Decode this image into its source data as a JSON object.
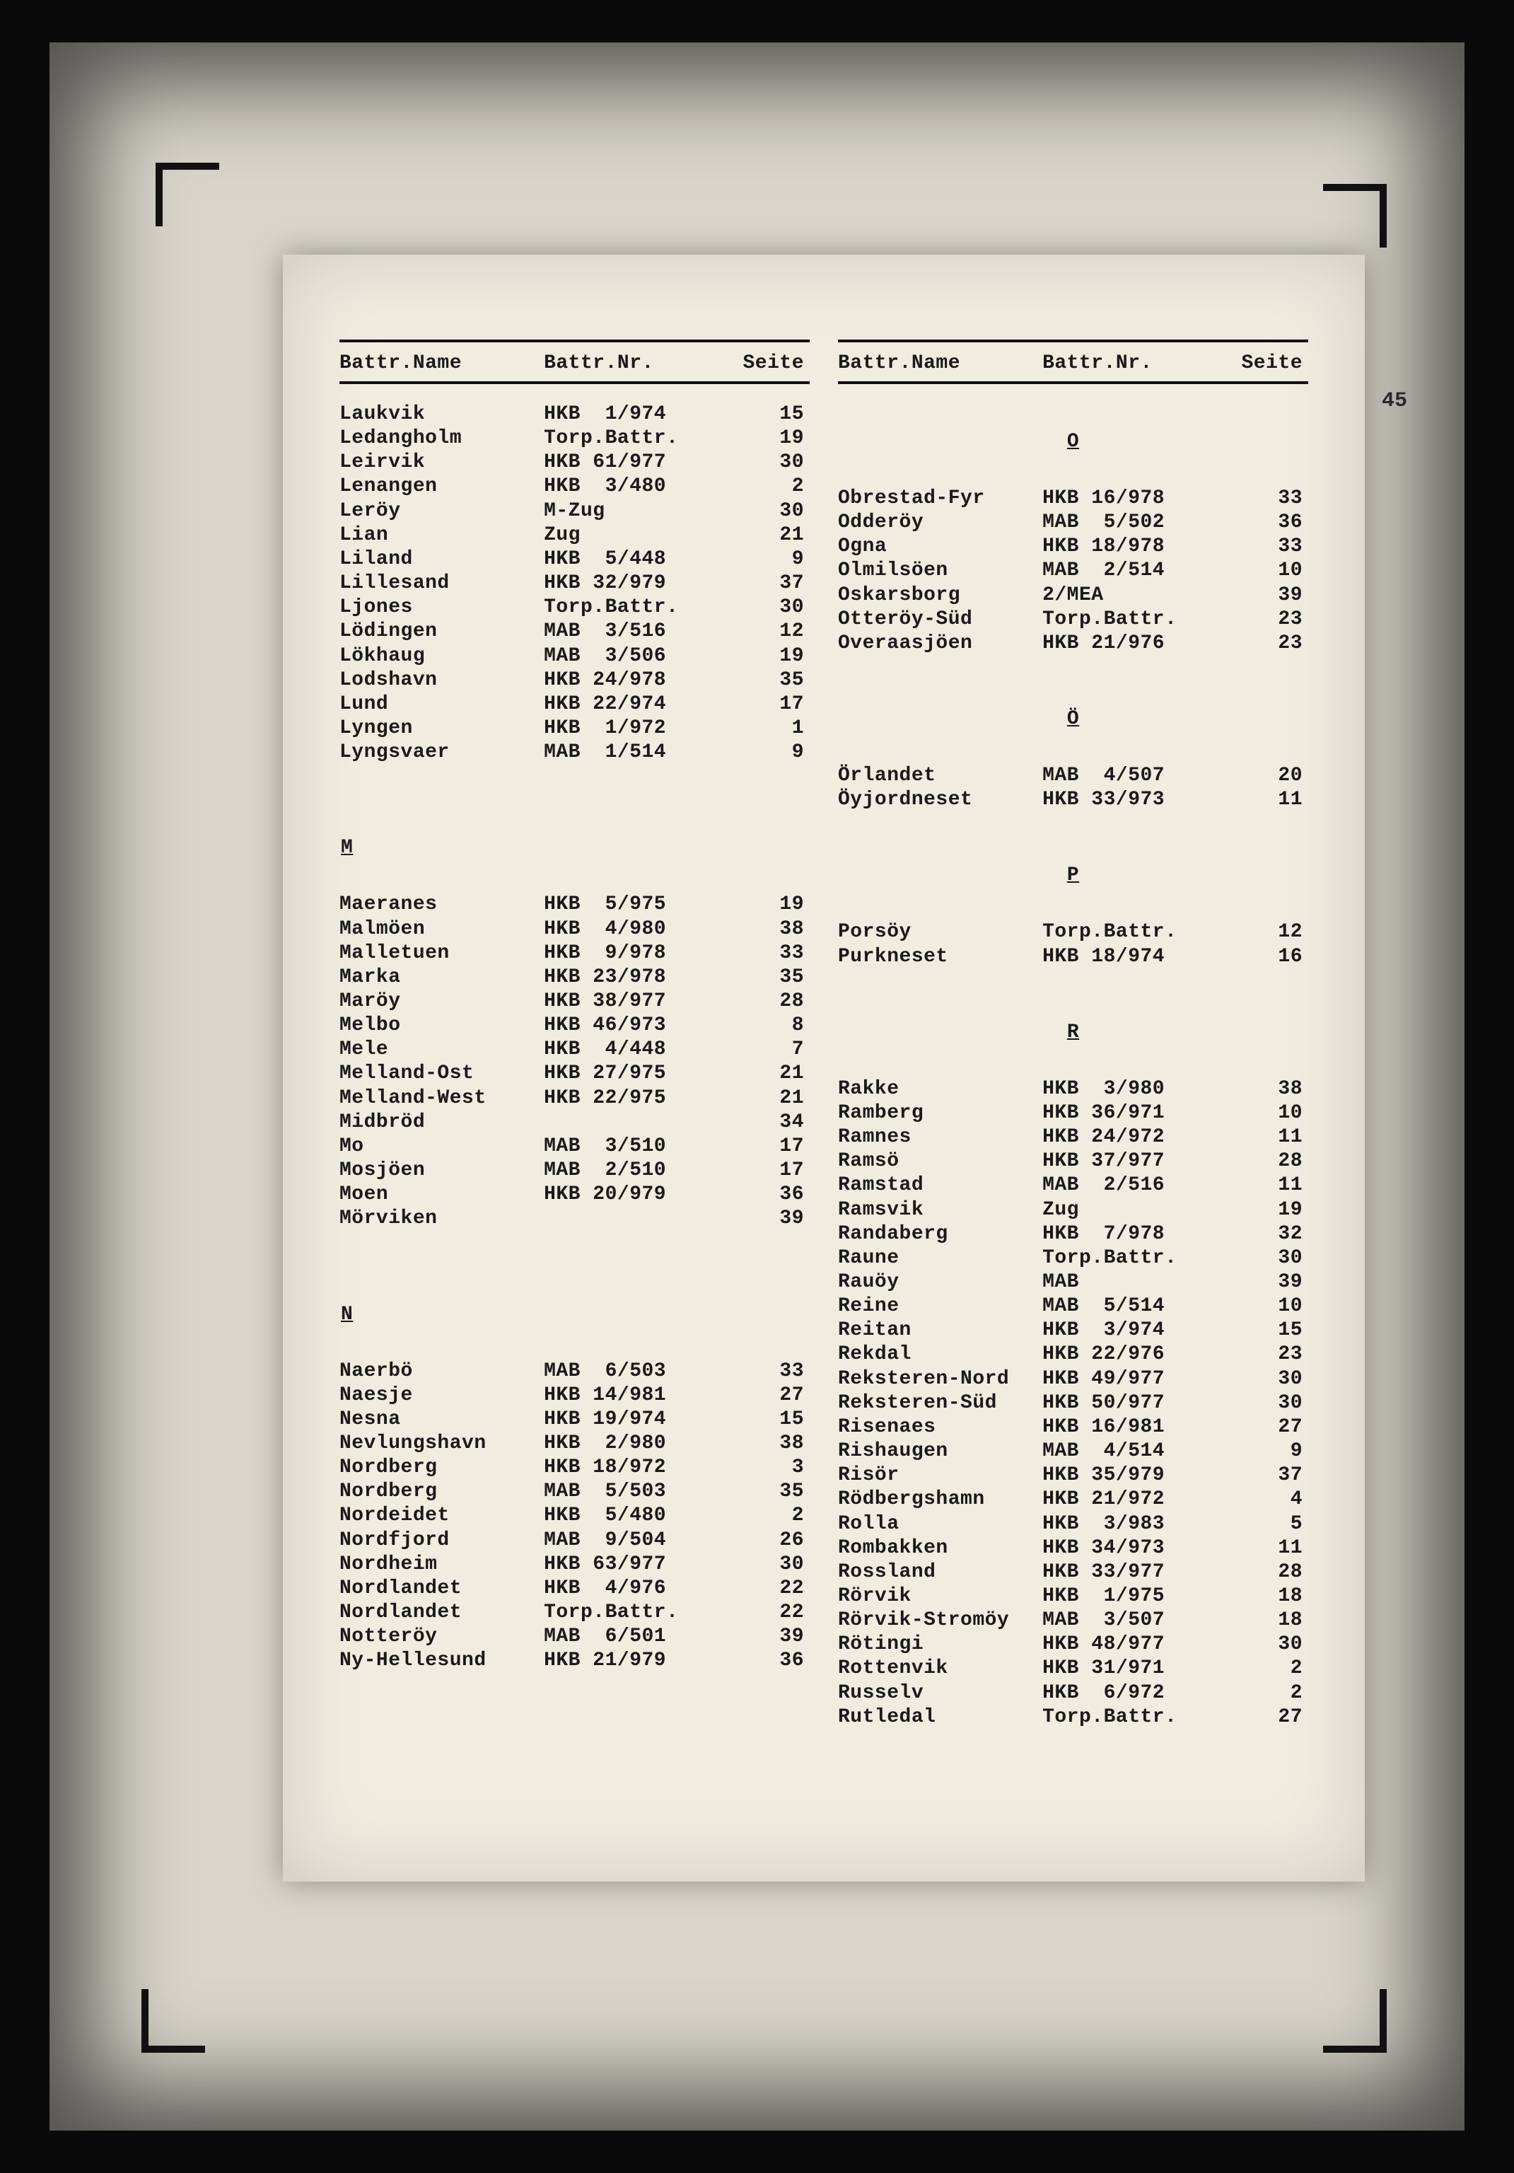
{
  "margin_number": "45",
  "headers": {
    "name": "Battr.Name",
    "nr": "Battr.Nr.",
    "seite": "Seite"
  },
  "left": {
    "groups": [
      {
        "heading": null,
        "rows": [
          {
            "name": "Laukvik",
            "nr": "HKB  1/974",
            "seite": "15"
          },
          {
            "name": "Ledangholm",
            "nr": "Torp.Battr.",
            "seite": "19"
          },
          {
            "name": "Leirvik",
            "nr": "HKB 61/977",
            "seite": "30"
          },
          {
            "name": "Lenangen",
            "nr": "HKB  3/480",
            "seite": "2"
          },
          {
            "name": "Leröy",
            "nr": "M-Zug",
            "seite": "30"
          },
          {
            "name": "Lian",
            "nr": "Zug",
            "seite": "21"
          },
          {
            "name": "Liland",
            "nr": "HKB  5/448",
            "seite": "9"
          },
          {
            "name": "Lillesand",
            "nr": "HKB 32/979",
            "seite": "37"
          },
          {
            "name": "Ljones",
            "nr": "Torp.Battr.",
            "seite": "30"
          },
          {
            "name": "Lödingen",
            "nr": "MAB  3/516",
            "seite": "12"
          },
          {
            "name": "Lökhaug",
            "nr": "MAB  3/506",
            "seite": "19"
          },
          {
            "name": "Lodshavn",
            "nr": "HKB 24/978",
            "seite": "35"
          },
          {
            "name": "Lund",
            "nr": "HKB 22/974",
            "seite": "17"
          },
          {
            "name": "Lyngen",
            "nr": "HKB  1/972",
            "seite": "1"
          },
          {
            "name": "Lyngsvaer",
            "nr": "MAB  1/514",
            "seite": "9"
          }
        ]
      },
      {
        "heading": "M",
        "rows": [
          {
            "name": "Maeranes",
            "nr": "HKB  5/975",
            "seite": "19"
          },
          {
            "name": "Malmöen",
            "nr": "HKB  4/980",
            "seite": "38"
          },
          {
            "name": "Malletuen",
            "nr": "HKB  9/978",
            "seite": "33"
          },
          {
            "name": "Marka",
            "nr": "HKB 23/978",
            "seite": "35"
          },
          {
            "name": "Maröy",
            "nr": "HKB 38/977",
            "seite": "28"
          },
          {
            "name": "Melbo",
            "nr": "HKB 46/973",
            "seite": "8"
          },
          {
            "name": "Mele",
            "nr": "HKB  4/448",
            "seite": "7"
          },
          {
            "name": "Melland-Ost",
            "nr": "HKB 27/975",
            "seite": "21"
          },
          {
            "name": "Melland-West",
            "nr": "HKB 22/975",
            "seite": "21"
          },
          {
            "name": "Midbröd",
            "nr": "",
            "seite": "34"
          },
          {
            "name": "Mo",
            "nr": "MAB  3/510",
            "seite": "17"
          },
          {
            "name": "Mosjöen",
            "nr": "MAB  2/510",
            "seite": "17"
          },
          {
            "name": "Moen",
            "nr": "HKB 20/979",
            "seite": "36"
          },
          {
            "name": "Mörviken",
            "nr": "",
            "seite": "39"
          }
        ]
      },
      {
        "heading": "N",
        "rows": [
          {
            "name": "Naerbö",
            "nr": "MAB  6/503",
            "seite": "33"
          },
          {
            "name": "Naesje",
            "nr": "HKB 14/981",
            "seite": "27"
          },
          {
            "name": "Nesna",
            "nr": "HKB 19/974",
            "seite": "15"
          },
          {
            "name": "Nevlungshavn",
            "nr": "HKB  2/980",
            "seite": "38"
          },
          {
            "name": "Nordberg",
            "nr": "HKB 18/972",
            "seite": "3"
          },
          {
            "name": "Nordberg",
            "nr": "MAB  5/503",
            "seite": "35"
          },
          {
            "name": "Nordeidet",
            "nr": "HKB  5/480",
            "seite": "2"
          },
          {
            "name": "Nordfjord",
            "nr": "MAB  9/504",
            "seite": "26"
          },
          {
            "name": "Nordheim",
            "nr": "HKB 63/977",
            "seite": "30"
          },
          {
            "name": "Nordlandet",
            "nr": "HKB  4/976",
            "seite": "22"
          },
          {
            "name": "Nordlandet",
            "nr": "Torp.Battr.",
            "seite": "22"
          },
          {
            "name": "Notteröy",
            "nr": "MAB  6/501",
            "seite": "39"
          },
          {
            "name": "Ny-Hellesund",
            "nr": "HKB 21/979",
            "seite": "36"
          }
        ]
      }
    ]
  },
  "right": {
    "groups": [
      {
        "heading": "O",
        "center": true,
        "rows": [
          {
            "name": "Obrestad-Fyr",
            "nr": "HKB 16/978",
            "seite": "33"
          },
          {
            "name": "Odderöy",
            "nr": "MAB  5/502",
            "seite": "36"
          },
          {
            "name": "Ogna",
            "nr": "HKB 18/978",
            "seite": "33"
          },
          {
            "name": "Olmilsöen",
            "nr": "MAB  2/514",
            "seite": "10"
          },
          {
            "name": "Oskarsborg",
            "nr": "2/MEA",
            "seite": "39"
          },
          {
            "name": "Otteröy-Süd",
            "nr": "Torp.Battr.",
            "seite": "23"
          },
          {
            "name": "Overaasjöen",
            "nr": "HKB 21/976",
            "seite": "23"
          }
        ]
      },
      {
        "heading": "Ö",
        "center": true,
        "rows": [
          {
            "name": "Örlandet",
            "nr": "MAB  4/507",
            "seite": "20"
          },
          {
            "name": "Öyjordneset",
            "nr": "HKB 33/973",
            "seite": "11"
          }
        ]
      },
      {
        "heading": "P",
        "center": true,
        "rows": [
          {
            "name": "Porsöy",
            "nr": "Torp.Battr.",
            "seite": "12"
          },
          {
            "name": "Purkneset",
            "nr": "HKB 18/974",
            "seite": "16"
          }
        ]
      },
      {
        "heading": "R",
        "center": true,
        "rows": [
          {
            "name": "Rakke",
            "nr": "HKB  3/980",
            "seite": "38"
          },
          {
            "name": "Ramberg",
            "nr": "HKB 36/971",
            "seite": "10"
          },
          {
            "name": "Ramnes",
            "nr": "HKB 24/972",
            "seite": "11"
          },
          {
            "name": "Ramsö",
            "nr": "HKB 37/977",
            "seite": "28"
          },
          {
            "name": "Ramstad",
            "nr": "MAB  2/516",
            "seite": "11"
          },
          {
            "name": "Ramsvik",
            "nr": "Zug",
            "seite": "19"
          },
          {
            "name": "Randaberg",
            "nr": "HKB  7/978",
            "seite": "32"
          },
          {
            "name": "Raune",
            "nr": "Torp.Battr.",
            "seite": "30"
          },
          {
            "name": "Rauöy",
            "nr": "MAB",
            "seite": "39"
          },
          {
            "name": "Reine",
            "nr": "MAB  5/514",
            "seite": "10"
          },
          {
            "name": "Reitan",
            "nr": "HKB  3/974",
            "seite": "15"
          },
          {
            "name": "Rekdal",
            "nr": "HKB 22/976",
            "seite": "23"
          },
          {
            "name": "Reksteren-Nord",
            "nr": "HKB 49/977",
            "seite": "30"
          },
          {
            "name": "Reksteren-Süd",
            "nr": "HKB 50/977",
            "seite": "30"
          },
          {
            "name": "Risenaes",
            "nr": "HKB 16/981",
            "seite": "27"
          },
          {
            "name": "Rishaugen",
            "nr": "MAB  4/514",
            "seite": "9"
          },
          {
            "name": "Risör",
            "nr": "HKB 35/979",
            "seite": "37"
          },
          {
            "name": "Rödbergshamn",
            "nr": "HKB 21/972",
            "seite": "4"
          },
          {
            "name": "Rolla",
            "nr": "HKB  3/983",
            "seite": "5"
          },
          {
            "name": "Rombakken",
            "nr": "HKB 34/973",
            "seite": "11"
          },
          {
            "name": "Rossland",
            "nr": "HKB 33/977",
            "seite": "28"
          },
          {
            "name": "Rörvik",
            "nr": "HKB  1/975",
            "seite": "18"
          },
          {
            "name": "Rörvik-Stromöy",
            "nr": "MAB  3/507",
            "seite": "18"
          },
          {
            "name": "Rötingi",
            "nr": "HKB 48/977",
            "seite": "30"
          },
          {
            "name": "Rottenvik",
            "nr": "HKB 31/971",
            "seite": "2"
          },
          {
            "name": "Russelv",
            "nr": "HKB  6/972",
            "seite": "2"
          },
          {
            "name": "Rutledal",
            "nr": "Torp.Battr.",
            "seite": "27"
          }
        ]
      }
    ]
  }
}
